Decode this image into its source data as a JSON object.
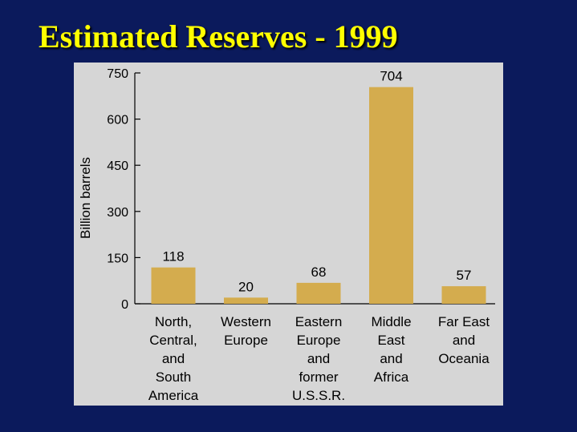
{
  "slide": {
    "title": "Estimated Reserves - 1999"
  },
  "colors": {
    "background": "#0b1a5c",
    "title": "#ffff00",
    "panel": "#d6d6d6",
    "bar": "#d4ac4e"
  },
  "chart_data": {
    "type": "bar",
    "title": "",
    "xlabel": "",
    "ylabel": "Billion barrels",
    "ylim": [
      0,
      750
    ],
    "yticks": [
      0,
      150,
      300,
      450,
      600,
      750
    ],
    "grid": false,
    "categories": [
      [
        "North,",
        "Central,",
        "and",
        "South",
        "America"
      ],
      [
        "Western",
        "Europe"
      ],
      [
        "Eastern",
        "Europe",
        "and",
        "former",
        "U.S.S.R."
      ],
      [
        "Middle",
        "East",
        "and",
        "Africa"
      ],
      [
        "Far East",
        "and",
        "Oceania"
      ]
    ],
    "values": [
      118,
      20,
      68,
      704,
      57
    ],
    "data_labels": [
      "118",
      "20",
      "68",
      "704",
      "57"
    ]
  }
}
